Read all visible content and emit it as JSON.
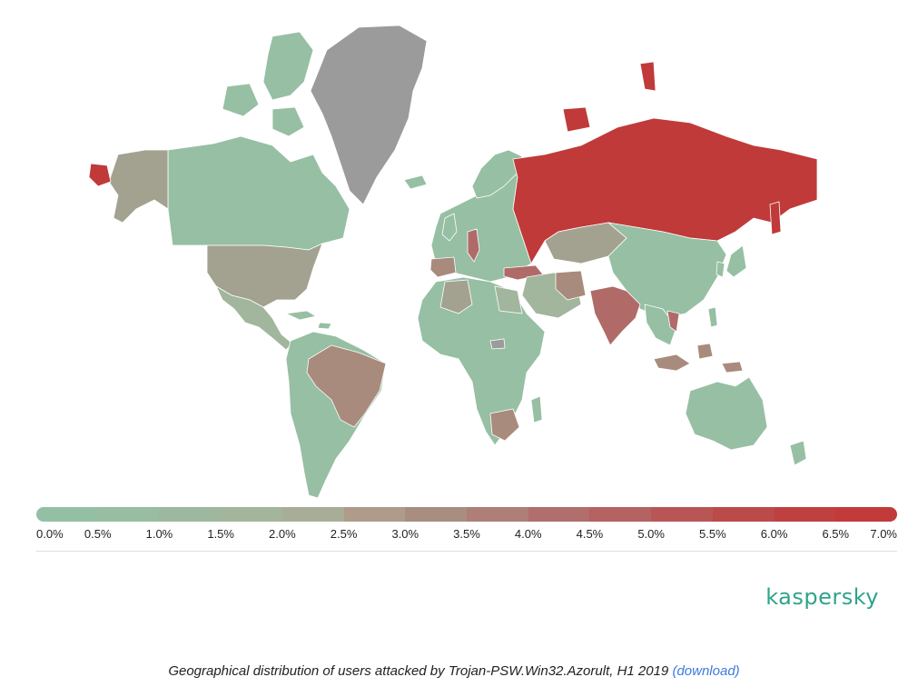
{
  "legend": {
    "colors": [
      "#93c0a4",
      "#98bda1",
      "#9db89f",
      "#a3b59b",
      "#a8ad98",
      "#ae9b8a",
      "#a88d80",
      "#ad7f77",
      "#b06e6c",
      "#b46262",
      "#b85656",
      "#bb4a4a",
      "#bf4040",
      "#c23a3a"
    ],
    "labels": [
      "0.0%",
      "0.5%",
      "1.0%",
      "1.5%",
      "2.0%",
      "2.5%",
      "3.0%",
      "3.5%",
      "4.0%",
      "4.5%",
      "5.0%",
      "5.5%",
      "6.0%",
      "6.5%",
      "7.0%"
    ]
  },
  "map_colors": {
    "low": "#97bfa3",
    "mid_low": "#a1b69c",
    "mid": "#a3a290",
    "mid_high": "#a88b7d",
    "high": "#b06b68",
    "max": "#c03a3a",
    "no_data": "#9b9b9b"
  },
  "brand": "kaspersky",
  "caption": {
    "text": "Geographical distribution of users attacked by Trojan-PSW.Win32.Azorult, H1 2019",
    "link": "(download)"
  }
}
